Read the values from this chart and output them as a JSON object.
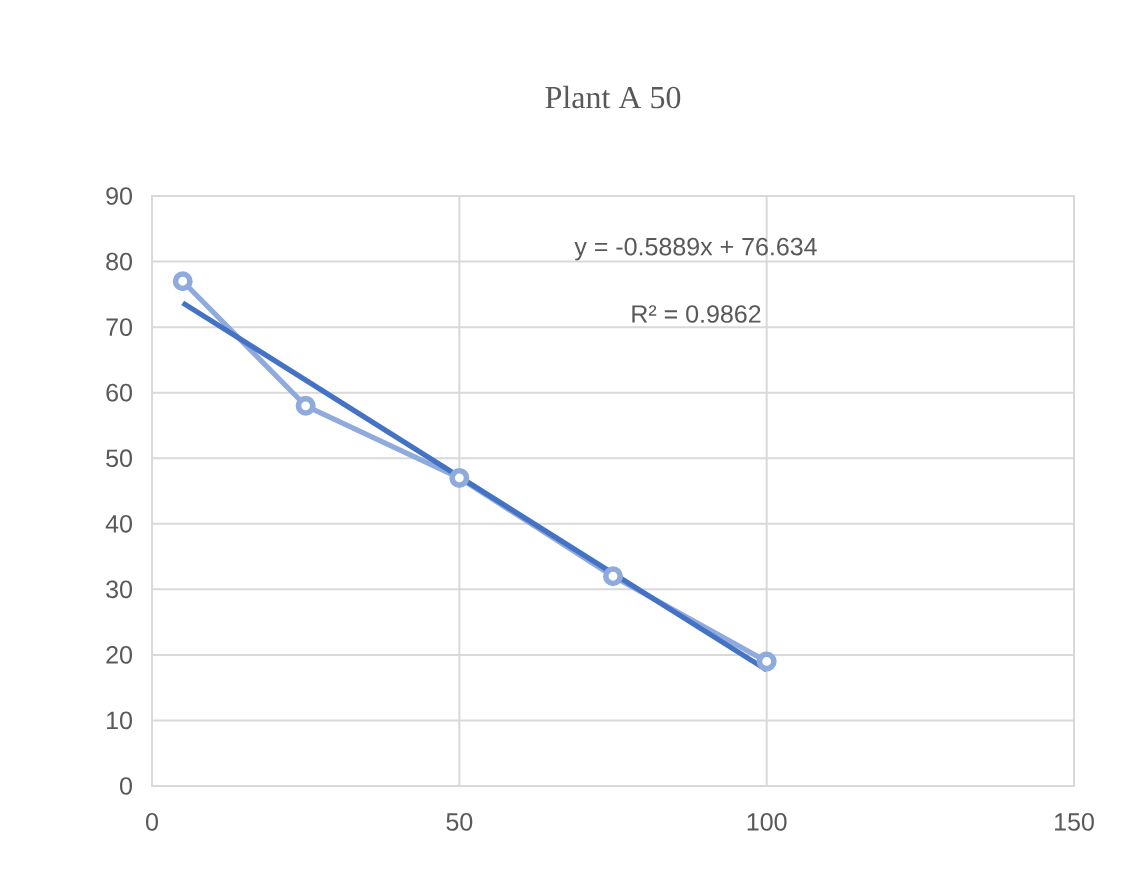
{
  "chart_data": {
    "type": "line",
    "title": "Plant A 50",
    "series": [
      {
        "x": [
          5,
          25,
          50,
          75,
          100
        ],
        "values": [
          77,
          58,
          47,
          32,
          19
        ],
        "color": "#8faadc",
        "marker": "circle"
      },
      {
        "x": [
          5,
          100
        ],
        "values": [
          73.7,
          17.7
        ],
        "color": "#4472c4",
        "marker": "none"
      }
    ],
    "annotations": [
      "y = -0.5889x + 76.634",
      "R² = 0.9862"
    ],
    "xlim": [
      0,
      150
    ],
    "xticks": [
      0,
      50,
      100,
      150
    ],
    "ylim": [
      0,
      90
    ],
    "yticks": [
      0,
      10,
      20,
      30,
      40,
      50,
      60,
      70,
      80,
      90
    ],
    "grid": true
  }
}
